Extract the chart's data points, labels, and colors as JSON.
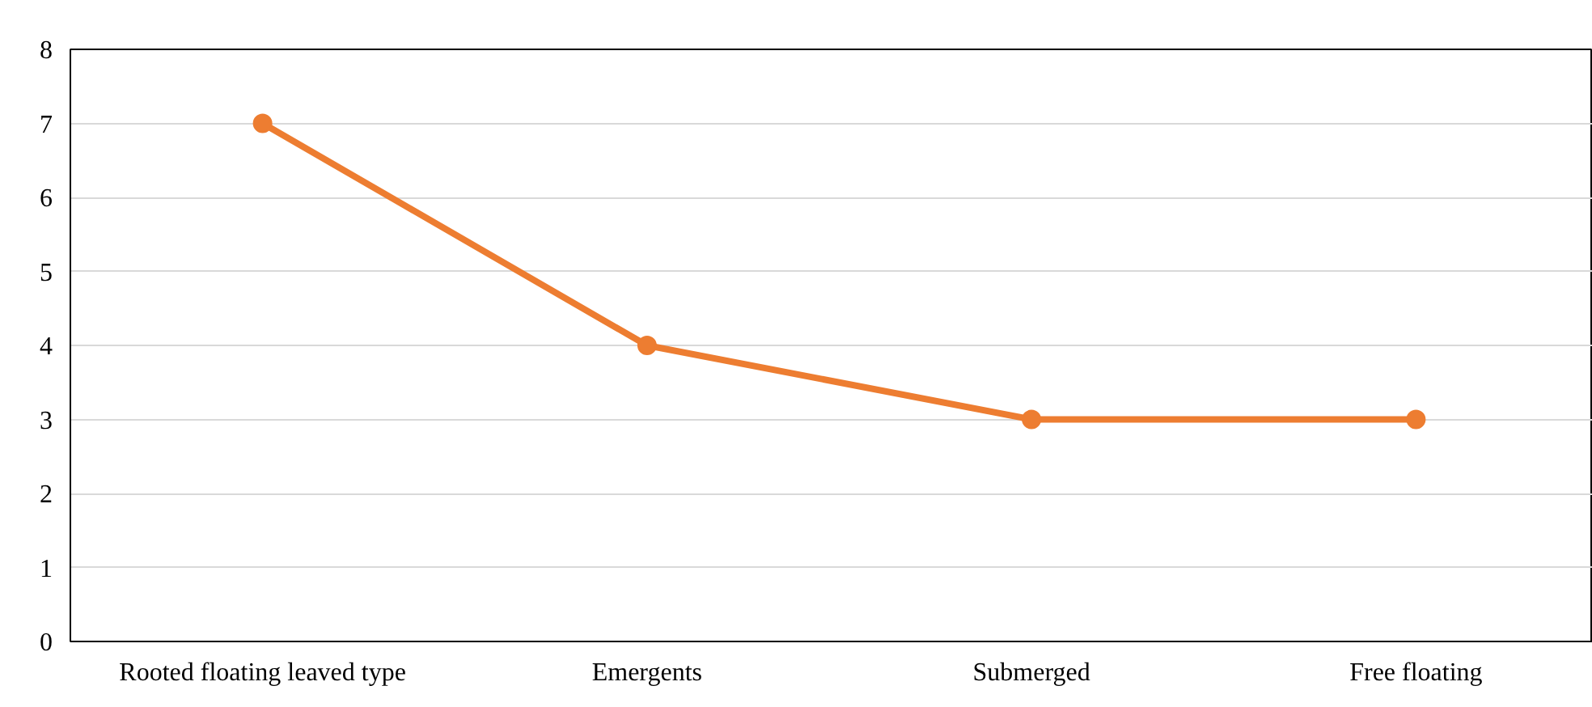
{
  "chart_data": {
    "type": "line",
    "categories": [
      "Rooted floating leaved type",
      "Emergents",
      "Submerged",
      "Free floating"
    ],
    "series": [
      {
        "color": "#ed7d31",
        "values": [
          7,
          4,
          3,
          3
        ]
      }
    ],
    "ylim": [
      0,
      8
    ],
    "yticks": [
      0,
      1,
      2,
      3,
      4,
      5,
      6,
      7,
      8
    ],
    "grid": "y",
    "marker": "circle",
    "line_style": "solid"
  }
}
